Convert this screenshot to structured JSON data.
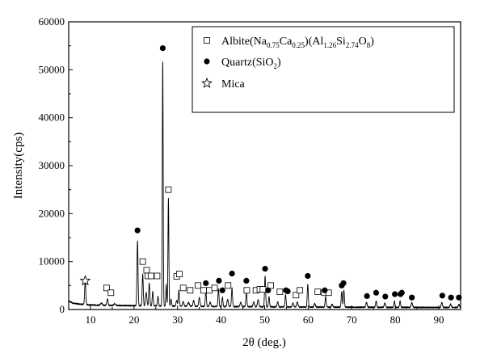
{
  "chart_data": {
    "type": "line",
    "title": "",
    "xlabel": "2θ (deg.)",
    "ylabel": "Intensity(cps)",
    "xlim": [
      5,
      95
    ],
    "ylim": [
      0,
      60000
    ],
    "x_ticks": [
      10,
      20,
      30,
      40,
      50,
      60,
      70,
      80,
      90
    ],
    "y_ticks": [
      0,
      10000,
      20000,
      30000,
      40000,
      50000,
      60000
    ],
    "x_tick_labels": [
      "10",
      "20",
      "30",
      "40",
      "50",
      "60",
      "70",
      "80",
      "90"
    ],
    "y_tick_labels": [
      "0",
      "10000",
      "20000",
      "30000",
      "40000",
      "50000",
      "60000"
    ],
    "grid": false,
    "legend_position": "top-right",
    "legend": [
      {
        "marker": "open-square",
        "parts": [
          [
            "Albite(Na",
            ""
          ],
          [
            "0.75",
            "sub"
          ],
          [
            "Ca",
            ""
          ],
          [
            "0.25",
            "sub"
          ],
          [
            ")(Al",
            ""
          ],
          [
            "1.26",
            "sub"
          ],
          [
            "Si",
            ""
          ],
          [
            "2.74",
            "sub"
          ],
          [
            "O",
            ""
          ],
          [
            "8",
            "sub"
          ],
          [
            ")",
            ""
          ]
        ]
      },
      {
        "marker": "filled-circle",
        "parts": [
          [
            "Quartz(SiO",
            ""
          ],
          [
            "2",
            "sub"
          ],
          [
            ")",
            ""
          ]
        ]
      },
      {
        "marker": "open-star",
        "parts": [
          [
            "Mica",
            ""
          ]
        ]
      }
    ],
    "pattern": {
      "baseline": [
        [
          5,
          1800
        ],
        [
          6,
          1300
        ],
        [
          8,
          1100
        ],
        [
          10,
          950
        ],
        [
          15,
          850
        ],
        [
          20,
          800
        ],
        [
          30,
          700
        ],
        [
          40,
          620
        ],
        [
          50,
          560
        ],
        [
          60,
          520
        ],
        [
          70,
          480
        ],
        [
          80,
          450
        ],
        [
          95,
          420
        ]
      ],
      "peaks": [
        [
          8.8,
          5500,
          0.12
        ],
        [
          12.5,
          450,
          0.2
        ],
        [
          13.9,
          1300,
          0.15
        ],
        [
          15.6,
          400,
          0.2
        ],
        [
          20.8,
          13500,
          0.12
        ],
        [
          22.0,
          6600,
          0.12
        ],
        [
          22.8,
          2800,
          0.15
        ],
        [
          23.5,
          4700,
          0.12
        ],
        [
          24.3,
          3000,
          0.12
        ],
        [
          25.5,
          2000,
          0.12
        ],
        [
          26.6,
          51000,
          0.1
        ],
        [
          27.4,
          4500,
          0.1
        ],
        [
          27.9,
          22500,
          0.1
        ],
        [
          28.5,
          1500,
          0.12
        ],
        [
          29.8,
          1200,
          0.15
        ],
        [
          30.3,
          3300,
          0.12
        ],
        [
          31.3,
          1000,
          0.15
        ],
        [
          32.5,
          800,
          0.2
        ],
        [
          33.7,
          1200,
          0.15
        ],
        [
          35.0,
          1800,
          0.15
        ],
        [
          36.5,
          3300,
          0.12
        ],
        [
          37.5,
          900,
          0.15
        ],
        [
          39.4,
          3700,
          0.12
        ],
        [
          40.3,
          1900,
          0.12
        ],
        [
          41.5,
          1500,
          0.15
        ],
        [
          42.5,
          3900,
          0.12
        ],
        [
          44.5,
          900,
          0.15
        ],
        [
          45.8,
          3000,
          0.12
        ],
        [
          47.5,
          1000,
          0.15
        ],
        [
          48.5,
          1500,
          0.15
        ],
        [
          50.1,
          6400,
          0.12
        ],
        [
          51.0,
          2100,
          0.12
        ],
        [
          53.0,
          1000,
          0.15
        ],
        [
          54.8,
          2600,
          0.12
        ],
        [
          56.5,
          800,
          0.15
        ],
        [
          57.5,
          1000,
          0.15
        ],
        [
          59.9,
          4700,
          0.12
        ],
        [
          61.5,
          700,
          0.15
        ],
        [
          64.0,
          2200,
          0.12
        ],
        [
          65.5,
          600,
          0.15
        ],
        [
          67.7,
          3300,
          0.12
        ],
        [
          68.2,
          3500,
          0.12
        ],
        [
          73.4,
          1000,
          0.15
        ],
        [
          75.6,
          1300,
          0.12
        ],
        [
          77.6,
          900,
          0.15
        ],
        [
          79.8,
          1300,
          0.12
        ],
        [
          81.1,
          1300,
          0.12
        ],
        [
          83.8,
          1000,
          0.15
        ],
        [
          90.7,
          1000,
          0.15
        ],
        [
          92.7,
          700,
          0.15
        ],
        [
          94.6,
          600,
          0.15
        ]
      ]
    },
    "albite_markers": [
      [
        13.7,
        4500
      ],
      [
        14.7,
        3500
      ],
      [
        22.0,
        10000
      ],
      [
        22.9,
        8200
      ],
      [
        23.2,
        7000
      ],
      [
        23.9,
        7000
      ],
      [
        25.3,
        7000
      ],
      [
        27.9,
        25000
      ],
      [
        29.8,
        6900
      ],
      [
        30.4,
        7400
      ],
      [
        31.3,
        4500
      ],
      [
        32.9,
        4000
      ],
      [
        34.7,
        5000
      ],
      [
        36.0,
        4000
      ],
      [
        37.3,
        4000
      ],
      [
        38.5,
        4500
      ],
      [
        41.6,
        5000
      ],
      [
        45.9,
        4000
      ],
      [
        48.0,
        4000
      ],
      [
        48.9,
        4200
      ],
      [
        49.6,
        4200
      ],
      [
        51.4,
        5000
      ],
      [
        53.5,
        3700
      ],
      [
        57.2,
        3000
      ],
      [
        58.1,
        4000
      ],
      [
        62.2,
        3700
      ],
      [
        63.7,
        3500
      ],
      [
        64.7,
        3500
      ]
    ],
    "quartz_markers": [
      [
        20.8,
        16500
      ],
      [
        26.6,
        54500
      ],
      [
        36.5,
        5500
      ],
      [
        39.5,
        6000
      ],
      [
        40.3,
        4000
      ],
      [
        42.5,
        7500
      ],
      [
        45.8,
        6000
      ],
      [
        50.1,
        8500
      ],
      [
        50.8,
        4000
      ],
      [
        54.9,
        4000
      ],
      [
        55.3,
        3800
      ],
      [
        59.9,
        7000
      ],
      [
        63.8,
        4000
      ],
      [
        67.7,
        5000
      ],
      [
        68.1,
        5500
      ],
      [
        73.5,
        2800
      ],
      [
        75.6,
        3500
      ],
      [
        77.7,
        2700
      ],
      [
        79.9,
        3200
      ],
      [
        81.2,
        3200
      ],
      [
        81.5,
        3500
      ],
      [
        83.8,
        2500
      ],
      [
        90.8,
        2900
      ],
      [
        92.8,
        2500
      ],
      [
        94.6,
        2500
      ]
    ],
    "mica_markers": [
      [
        8.8,
        6000
      ]
    ]
  }
}
